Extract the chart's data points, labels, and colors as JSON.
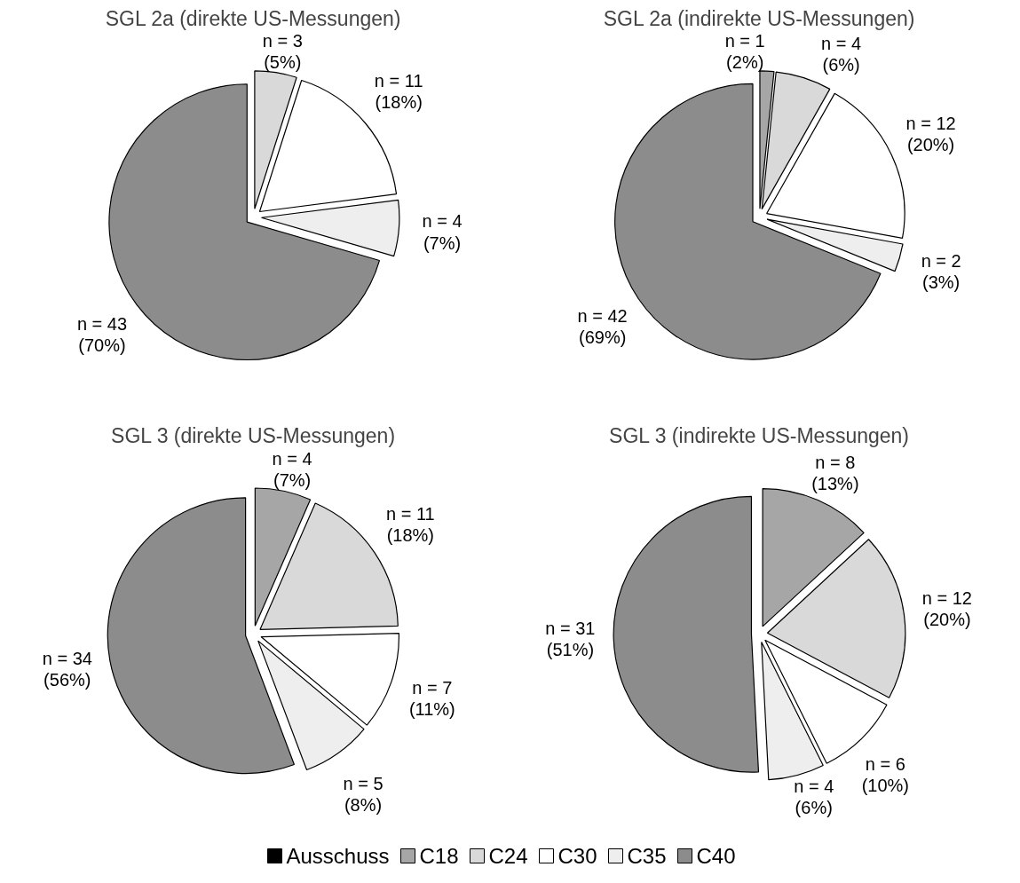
{
  "chart_data": [
    {
      "type": "pie",
      "title": "SGL 2a (direkte US-Messungen)",
      "categories": [
        "Ausschuss",
        "C18",
        "C24",
        "C30",
        "C35",
        "C40"
      ],
      "values": [
        0,
        0,
        3,
        11,
        4,
        43
      ],
      "colors": [
        "#000000",
        "#a6a6a6",
        "#d9d9d9",
        "#ffffff",
        "#eeeeee",
        "#8c8c8c"
      ],
      "value_labels": [
        null,
        null,
        "n = 3\n(5%)",
        "n = 11\n(18%)",
        "n = 4\n(7%)",
        "n = 43\n(70%)"
      ],
      "legend": "bottom"
    },
    {
      "type": "pie",
      "title": "SGL 2a (indirekte US-Messungen)",
      "categories": [
        null,
        null,
        null,
        null,
        null,
        null
      ],
      "values": [
        0,
        1,
        4,
        12,
        2,
        42
      ],
      "colors": [
        "#000000",
        "#a6a6a6",
        "#d9d9d9",
        "#ffffff",
        "#eeeeee",
        "#8c8c8c"
      ],
      "value_labels": [
        null,
        "n = 1\n(2%)",
        "n = 4\n(6%)",
        "n = 12\n(20%)",
        "n = 2\n(3%)",
        "n = 42\n(69%)"
      ]
    },
    {
      "type": "pie",
      "title": "SGL 3 (direkte US-Messungen)",
      "categories": [
        null,
        null,
        null,
        null,
        null,
        null
      ],
      "values": [
        0,
        4,
        11,
        7,
        5,
        34
      ],
      "colors": [
        "#000000",
        "#a6a6a6",
        "#d9d9d9",
        "#ffffff",
        "#eeeeee",
        "#8c8c8c"
      ],
      "value_labels": [
        null,
        "n = 4\n(7%)",
        "n = 11\n(18%)",
        "n = 7\n(11%)",
        "n = 5\n(8%)",
        "n = 34\n(56%)"
      ]
    },
    {
      "type": "pie",
      "title": "SGL 3 (indirekte US-Messungen)",
      "categories": [
        null,
        null,
        null,
        null,
        null,
        null
      ],
      "values": [
        0,
        8,
        12,
        6,
        4,
        31
      ],
      "colors": [
        "#000000",
        "#a6a6a6",
        "#d9d9d9",
        "#ffffff",
        "#eeeeee",
        "#8c8c8c"
      ],
      "value_labels": [
        null,
        "n = 8\n(13%)",
        "n = 12\n(20%)",
        "n = 6\n(10%)",
        "n = 4\n(6%)",
        "n = 31\n(51%)"
      ]
    }
  ]
}
